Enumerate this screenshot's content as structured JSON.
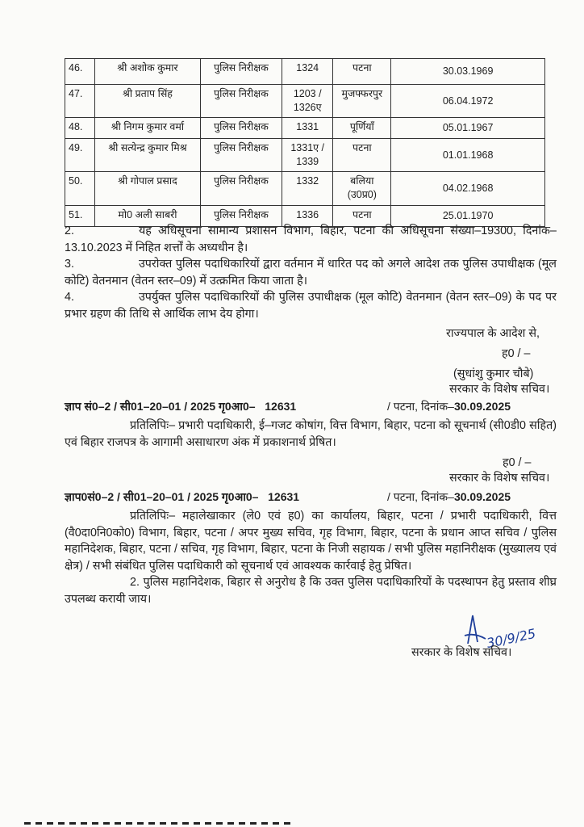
{
  "table": {
    "rows": [
      {
        "no": "46.",
        "name": "श्री अशोक कुमार",
        "post": "पुलिस निरीक्षक",
        "number": "1324",
        "district": "पटना",
        "dob": "30.03.1969"
      },
      {
        "no": "47.",
        "name": "श्री प्रताप सिंह",
        "post": "पुलिस निरीक्षक",
        "number": "1203 / 1326ए",
        "district": "मुजफ्फरपुर",
        "dob": "06.04.1972"
      },
      {
        "no": "48.",
        "name": "श्री निगम कुमार वर्मा",
        "post": "पुलिस निरीक्षक",
        "number": "1331",
        "district": "पूर्णियाँ",
        "dob": "05.01.1967"
      },
      {
        "no": "49.",
        "name": "श्री सत्येन्द्र कुमार मिश्र",
        "post": "पुलिस निरीक्षक",
        "number": "1331ए / 1339",
        "district": "पटना",
        "dob": "01.01.1968"
      },
      {
        "no": "50.",
        "name": "श्री गोपाल प्रसाद",
        "post": "पुलिस निरीक्षक",
        "number": "1332",
        "district": "बलिया (उ0प्र0)",
        "dob": "04.02.1968"
      },
      {
        "no": "51.",
        "name": "मो0 अली साबरी",
        "post": "पुलिस निरीक्षक",
        "number": "1336",
        "district": "पटना",
        "dob": "25.01.1970"
      }
    ]
  },
  "paragraphs": [
    {
      "no": "2.",
      "text": "यह अधिसूचना सामान्य प्रशासन विभाग, बिहार, पटना की अधिसूचना संख्या–19300, दिनांक–13.10.2023 में निहित शर्त्तों के अध्यधीन है।"
    },
    {
      "no": "3.",
      "text": "उपरोक्त पुलिस पदाधिकारियों द्वारा वर्तमान में धारित पद को अगले आदेश तक पुलिस उपाधीक्षक (मूल कोटि) वेतनमान (वेतन स्तर–09) में उत्क्रमित किया जाता है।"
    },
    {
      "no": "4.",
      "text": "उपर्युक्त पुलिस पदाधिकारियों की पुलिस उपाधीक्षक (मूल कोटि) वेतनमान (वेतन स्तर–09) के पद पर प्रभार ग्रहण की तिथि से आर्थिक लाभ देय होगा।"
    }
  ],
  "signoff": {
    "order": "राज्यपाल के आदेश से,",
    "signed": "ह0 / –",
    "name": "(सुधांशु कुमार चौबे)",
    "designation": "सरकार के विशेष सचिव।"
  },
  "memo1": {
    "ref": "ज्ञाप सं0–2 / सी01–20–01 / 2025 गृ0आ0–",
    "number": "12631",
    "place": "/ पटना, दिनांक–",
    "date": "30.09.2025",
    "text": "प्रतिलिपिः– प्रभारी पदाधिकारी, ई–गजट कोषांग, वित्त विभाग, बिहार, पटना को सूचनार्थ (सी0डी0 सहित) एवं बिहार राजपत्र के आगामी असाधारण अंक में प्रकाशनार्थ प्रेषित।",
    "signed": "ह0 / –",
    "designation": "सरकार के विशेष सचिव।"
  },
  "memo2": {
    "ref": "ज्ञाप0सं0–2 / सी01–20–01 / 2025 गृ0आ0–",
    "number": "12631",
    "place": "/ पटना, दिनांक–",
    "date": "30.09.2025",
    "text": "प्रतिलिपिः– महालेखाकार (ले0 एवं ह0) का कार्यालय, बिहार, पटना / प्रभारी पदाधिकारी, वित्त (वै0दा0नि0को0) विभाग, बिहार, पटना / अपर मुख्य सचिव, गृह विभाग, बिहार, पटना के प्रधान आप्त सचिव / पुलिस महानिदेशक, बिहार, पटना / सचिव, गृह विभाग, बिहार, पटना के निजी सहायक / सभी पुलिस महानिरीक्षक (मुख्यालय एवं क्षेत्र) / सभी संबंधित पुलिस पदाधिकारी को सूचनार्थ एवं आवश्यक कार्रवाई हेतु प्रेषित।",
    "text2": "2. पुलिस महानिदेशक, बिहार से अनुरोध है कि उक्त पुलिस पदाधिकारियों के पदस्थापन हेतु प्रस्ताव शीघ्र उपलब्ध करायी जाय।",
    "signature_date": "30/9/25",
    "designation": "सरकार के विशेष सचिव।"
  },
  "colors": {
    "ink": "#1d1d1d",
    "signature": "#1f3f9a"
  }
}
